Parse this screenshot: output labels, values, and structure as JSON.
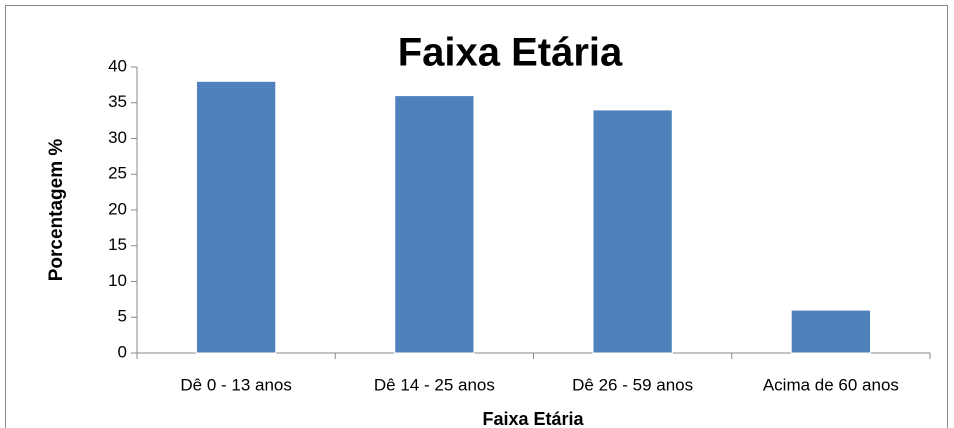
{
  "chart_data": {
    "type": "bar",
    "title": "Faixa Etária",
    "x_label": "Faixa Etária",
    "y_label": "Porcentagem %",
    "categories": [
      "Dê 0 - 13 anos",
      "Dê 14 - 25 anos",
      "Dê 26 - 59 anos",
      "Acima de 60 anos"
    ],
    "values": [
      38,
      36,
      34,
      6
    ],
    "color": "#4f81bd",
    "ylim": [
      0,
      40
    ],
    "yticks": [
      0,
      5,
      10,
      15,
      20,
      25,
      30,
      35,
      40
    ],
    "grid": false
  }
}
